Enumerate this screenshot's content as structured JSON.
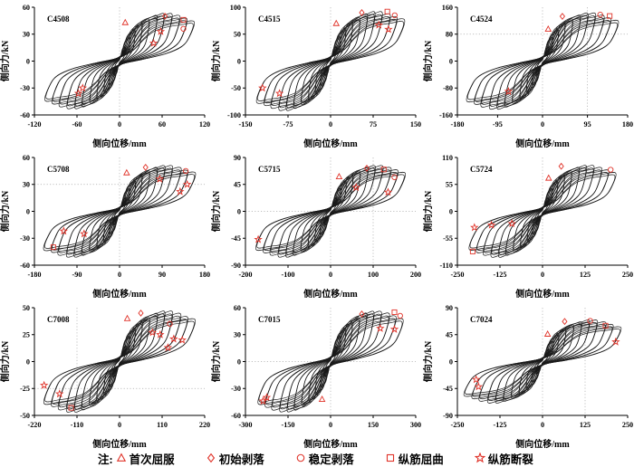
{
  "figure": {
    "background": "#ffffff",
    "curve_color": "#1a1a1a",
    "marker_color": "#e03228",
    "ref_line_color": "#aaaaaa",
    "axis_color": "#000000"
  },
  "axis_titles": {
    "x": "侧向位移/mm",
    "y": "侧向力/kN"
  },
  "legend": {
    "prefix": "注:",
    "items": [
      {
        "key": "first-yield",
        "symbol": "triangle",
        "label": "首次屈服"
      },
      {
        "key": "initial-spalling",
        "symbol": "diamond",
        "label": "初始剥落"
      },
      {
        "key": "stable-spalling",
        "symbol": "circle",
        "label": "稳定剥落"
      },
      {
        "key": "bar-buckling",
        "symbol": "square",
        "label": "纵筋屈曲"
      },
      {
        "key": "bar-fracture",
        "symbol": "star",
        "label": "纵筋断裂"
      }
    ]
  },
  "chart_data": [
    {
      "type": "line",
      "name": "C4508",
      "xlabel": "侧向位移/mm",
      "ylabel": "侧向力/kN",
      "xlim": [
        -120,
        120
      ],
      "ylim": [
        -60,
        60
      ],
      "xticks": [
        -120,
        -60,
        0,
        60,
        120
      ],
      "yticks": [
        -60,
        -30,
        0,
        30,
        60
      ],
      "ref_v": [
        0
      ],
      "ref_h": [],
      "cycles": [
        [
          8,
          16
        ],
        [
          15,
          26
        ],
        [
          22,
          34
        ],
        [
          32,
          41
        ],
        [
          42,
          46
        ],
        [
          53,
          50
        ],
        [
          63,
          52
        ],
        [
          74,
          52
        ],
        [
          85,
          50
        ],
        [
          95,
          47
        ],
        [
          105,
          44
        ]
      ],
      "markers": [
        {
          "sym": "triangle",
          "x": 8,
          "y": 43
        },
        {
          "sym": "diamond",
          "x": 64,
          "y": 50
        },
        {
          "sym": "square",
          "x": 90,
          "y": 46
        },
        {
          "sym": "circle",
          "x": 90,
          "y": 36
        },
        {
          "sym": "star",
          "x": 58,
          "y": 33
        },
        {
          "sym": "star",
          "x": 48,
          "y": 20
        },
        {
          "sym": "star",
          "x": -52,
          "y": -30
        },
        {
          "sym": "star",
          "x": -58,
          "y": -36
        }
      ]
    },
    {
      "type": "line",
      "name": "C4515",
      "xlabel": "侧向位移/mm",
      "ylabel": "侧向力/kN",
      "xlim": [
        -150,
        150
      ],
      "ylim": [
        -100,
        100
      ],
      "xticks": [
        -150,
        -75,
        0,
        75,
        150
      ],
      "yticks": [
        -100,
        -50,
        0,
        50,
        100
      ],
      "ref_v": [
        0
      ],
      "ref_h": [],
      "cycles": [
        [
          10,
          27
        ],
        [
          18,
          45
        ],
        [
          27,
          59
        ],
        [
          39,
          71
        ],
        [
          52,
          79
        ],
        [
          65,
          86
        ],
        [
          78,
          90
        ],
        [
          91,
          90
        ],
        [
          105,
          86
        ],
        [
          117,
          81
        ],
        [
          130,
          77
        ]
      ],
      "markers": [
        {
          "sym": "triangle",
          "x": 10,
          "y": 70
        },
        {
          "sym": "diamond",
          "x": 55,
          "y": 90
        },
        {
          "sym": "square",
          "x": 100,
          "y": 92
        },
        {
          "sym": "circle",
          "x": 113,
          "y": 85
        },
        {
          "sym": "star",
          "x": 85,
          "y": 67
        },
        {
          "sym": "star",
          "x": 102,
          "y": 59
        },
        {
          "sym": "star",
          "x": -120,
          "y": -50
        },
        {
          "sym": "star",
          "x": -90,
          "y": -60
        }
      ]
    },
    {
      "type": "line",
      "name": "C4524",
      "xlabel": "侧向位移/mm",
      "ylabel": "侧向力/kN",
      "xlim": [
        -180,
        180
      ],
      "ylim": [
        -160,
        160
      ],
      "xticks": [
        -180,
        -95,
        0,
        95,
        180
      ],
      "yticks": [
        -160,
        -80,
        0,
        80,
        160
      ],
      "ref_v": [
        0,
        95
      ],
      "ref_h": [
        80
      ],
      "cycles": [
        [
          13,
          42
        ],
        [
          22,
          70
        ],
        [
          34,
          91
        ],
        [
          48,
          111
        ],
        [
          64,
          123
        ],
        [
          80,
          134
        ],
        [
          96,
          140
        ],
        [
          112,
          140
        ],
        [
          130,
          134
        ],
        [
          144,
          126
        ],
        [
          160,
          119
        ]
      ],
      "markers": [
        {
          "sym": "triangle",
          "x": 12,
          "y": 95
        },
        {
          "sym": "diamond",
          "x": 42,
          "y": 133
        },
        {
          "sym": "circle",
          "x": 122,
          "y": 138
        },
        {
          "sym": "square",
          "x": 142,
          "y": 134
        },
        {
          "sym": "star",
          "x": -72,
          "y": -90
        }
      ]
    },
    {
      "type": "line",
      "name": "C5708",
      "xlabel": "侧向位移/mm",
      "ylabel": "侧向力/kN",
      "xlim": [
        -180,
        180
      ],
      "ylim": [
        -60,
        60
      ],
      "xticks": [
        -180,
        -90,
        0,
        90,
        180
      ],
      "yticks": [
        -60,
        -30,
        0,
        30,
        60
      ],
      "ref_v": [
        0
      ],
      "ref_h": [
        30
      ],
      "cycles": [
        [
          13,
          15
        ],
        [
          22,
          25
        ],
        [
          34,
          33
        ],
        [
          48,
          40
        ],
        [
          64,
          44
        ],
        [
          80,
          48
        ],
        [
          96,
          50
        ],
        [
          112,
          50
        ],
        [
          130,
          48
        ],
        [
          144,
          45
        ],
        [
          160,
          43
        ]
      ],
      "markers": [
        {
          "sym": "triangle",
          "x": 15,
          "y": 43
        },
        {
          "sym": "diamond",
          "x": 55,
          "y": 49
        },
        {
          "sym": "circle",
          "x": 140,
          "y": 45
        },
        {
          "sym": "star",
          "x": 85,
          "y": 36
        },
        {
          "sym": "star",
          "x": 143,
          "y": 30
        },
        {
          "sym": "star",
          "x": 128,
          "y": 22
        },
        {
          "sym": "star",
          "x": -118,
          "y": -22
        },
        {
          "sym": "star",
          "x": -75,
          "y": -25
        },
        {
          "sym": "square",
          "x": -140,
          "y": -40
        }
      ]
    },
    {
      "type": "line",
      "name": "C5715",
      "xlabel": "侧向位移/mm",
      "ylabel": "侧向力/kN",
      "xlim": [
        -200,
        200
      ],
      "ylim": [
        -90,
        90
      ],
      "xticks": [
        -200,
        -100,
        0,
        100,
        200
      ],
      "yticks": [
        -90,
        -45,
        0,
        45,
        90
      ],
      "ref_v": [
        0,
        100
      ],
      "ref_h": [
        0
      ],
      "cycles": [
        [
          14,
          23
        ],
        [
          25,
          38
        ],
        [
          37,
          49
        ],
        [
          53,
          59
        ],
        [
          70,
          66
        ],
        [
          88,
          72
        ],
        [
          105,
          75
        ],
        [
          123,
          75
        ],
        [
          142,
          72
        ],
        [
          158,
          68
        ],
        [
          175,
          64
        ]
      ],
      "markers": [
        {
          "sym": "triangle",
          "x": 20,
          "y": 58
        },
        {
          "sym": "diamond",
          "x": 85,
          "y": 72
        },
        {
          "sym": "square",
          "x": 125,
          "y": 70
        },
        {
          "sym": "circle",
          "x": 150,
          "y": 57
        },
        {
          "sym": "star",
          "x": 60,
          "y": 40
        },
        {
          "sym": "star",
          "x": 135,
          "y": 32
        },
        {
          "sym": "star",
          "x": -170,
          "y": -47
        }
      ]
    },
    {
      "type": "line",
      "name": "C5724",
      "xlabel": "侧向位移/mm",
      "ylabel": "侧向力/kN",
      "xlim": [
        -250,
        250
      ],
      "ylim": [
        -110,
        110
      ],
      "xticks": [
        -250,
        -125,
        0,
        125,
        250
      ],
      "yticks": [
        -110,
        -55,
        0,
        55,
        110
      ],
      "ref_v": [
        0
      ],
      "ref_h": [],
      "cycles": [
        [
          17,
          28
        ],
        [
          30,
          46
        ],
        [
          45,
          60
        ],
        [
          65,
          73
        ],
        [
          86,
          81
        ],
        [
          108,
          88
        ],
        [
          129,
          92
        ],
        [
          151,
          92
        ],
        [
          174,
          88
        ],
        [
          194,
          83
        ],
        [
          215,
          78
        ]
      ],
      "markers": [
        {
          "sym": "triangle",
          "x": 18,
          "y": 68
        },
        {
          "sym": "diamond",
          "x": 55,
          "y": 92
        },
        {
          "sym": "circle",
          "x": 200,
          "y": 85
        },
        {
          "sym": "star",
          "x": -90,
          "y": -25
        },
        {
          "sym": "star",
          "x": -150,
          "y": -28
        },
        {
          "sym": "star",
          "x": -200,
          "y": -33
        },
        {
          "sym": "square",
          "x": -205,
          "y": -82
        }
      ]
    },
    {
      "type": "line",
      "name": "C7008",
      "xlabel": "侧向位移/mm",
      "ylabel": "侧向力/kN",
      "xlim": [
        -220,
        220
      ],
      "ylim": [
        -50,
        50
      ],
      "xticks": [
        -220,
        -110,
        0,
        110,
        220
      ],
      "yticks": [
        -50,
        -25,
        0,
        25,
        50
      ],
      "ref_v": [
        -110
      ],
      "ref_h": [
        -25
      ],
      "cycles": [
        [
          16,
          14
        ],
        [
          27,
          23
        ],
        [
          41,
          30
        ],
        [
          59,
          36
        ],
        [
          78,
          40
        ],
        [
          98,
          44
        ],
        [
          117,
          46
        ],
        [
          137,
          46
        ],
        [
          158,
          44
        ],
        [
          176,
          41
        ],
        [
          195,
          39
        ]
      ],
      "markers": [
        {
          "sym": "triangle",
          "x": 20,
          "y": 40
        },
        {
          "sym": "diamond",
          "x": 55,
          "y": 45
        },
        {
          "sym": "circle",
          "x": 130,
          "y": 35
        },
        {
          "sym": "star",
          "x": 85,
          "y": 27
        },
        {
          "sym": "star",
          "x": 105,
          "y": 25
        },
        {
          "sym": "star",
          "x": 125,
          "y": 13
        },
        {
          "sym": "star",
          "x": 140,
          "y": 21
        },
        {
          "sym": "star",
          "x": 162,
          "y": 20
        },
        {
          "sym": "star",
          "x": -195,
          "y": -22
        },
        {
          "sym": "star",
          "x": -155,
          "y": -30
        },
        {
          "sym": "square",
          "x": -125,
          "y": -43
        }
      ]
    },
    {
      "type": "line",
      "name": "C7015",
      "xlabel": "侧向位移/mm",
      "ylabel": "侧向力/kN",
      "xlim": [
        -300,
        300
      ],
      "ylim": [
        -60,
        60
      ],
      "xticks": [
        -300,
        -150,
        0,
        150,
        300
      ],
      "yticks": [
        -60,
        -30,
        0,
        30,
        60
      ],
      "ref_v": [
        0
      ],
      "ref_h": [
        0
      ],
      "cycles": [
        [
          20,
          17
        ],
        [
          36,
          28
        ],
        [
          54,
          36
        ],
        [
          77,
          43
        ],
        [
          102,
          48
        ],
        [
          128,
          53
        ],
        [
          153,
          55
        ],
        [
          179,
          55
        ],
        [
          207,
          53
        ],
        [
          230,
          50
        ],
        [
          255,
          47
        ]
      ],
      "markers": [
        {
          "sym": "diamond",
          "x": 110,
          "y": 53
        },
        {
          "sym": "square",
          "x": 225,
          "y": 55
        },
        {
          "sym": "circle",
          "x": 245,
          "y": 51
        },
        {
          "sym": "star",
          "x": 175,
          "y": 37
        },
        {
          "sym": "star",
          "x": 225,
          "y": 36
        },
        {
          "sym": "triangle",
          "x": -30,
          "y": -42
        },
        {
          "sym": "star",
          "x": -225,
          "y": -40
        },
        {
          "sym": "star",
          "x": -238,
          "y": -44
        }
      ]
    },
    {
      "type": "line",
      "name": "C7024",
      "xlabel": "侧向位移/mm",
      "ylabel": "侧向力/kN",
      "xlim": [
        -250,
        250
      ],
      "ylim": [
        -90,
        90
      ],
      "xticks": [
        -250,
        -125,
        0,
        125,
        250
      ],
      "yticks": [
        -90,
        -45,
        0,
        45,
        90
      ],
      "ref_v": [
        0,
        125
      ],
      "ref_h": [],
      "cycles": [
        [
          18,
          20
        ],
        [
          32,
          34
        ],
        [
          48,
          44
        ],
        [
          69,
          54
        ],
        [
          92,
          60
        ],
        [
          115,
          65
        ],
        [
          138,
          68
        ],
        [
          161,
          68
        ],
        [
          186,
          65
        ],
        [
          207,
          61
        ],
        [
          230,
          57
        ]
      ],
      "markers": [
        {
          "sym": "triangle",
          "x": 15,
          "y": 46
        },
        {
          "sym": "diamond",
          "x": 65,
          "y": 67
        },
        {
          "sym": "circle",
          "x": 140,
          "y": 68
        },
        {
          "sym": "square",
          "x": 185,
          "y": 60
        },
        {
          "sym": "star",
          "x": 215,
          "y": 33
        },
        {
          "sym": "star",
          "x": -195,
          "y": -30
        },
        {
          "sym": "star",
          "x": -188,
          "y": -42
        }
      ]
    }
  ]
}
